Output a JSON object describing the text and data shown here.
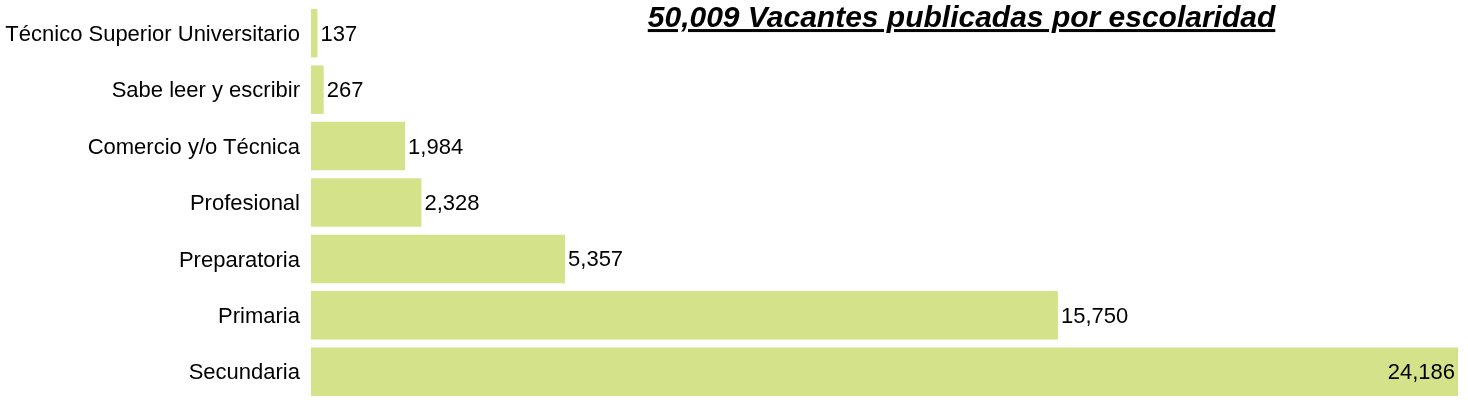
{
  "chart_data": {
    "type": "bar",
    "orientation": "horizontal",
    "title": "50,009 Vacantes publicadas por escolaridad",
    "categories": [
      "Técnico Superior Universitario",
      "Sabe leer y escribir",
      "Comercio y/o Técnica",
      "Profesional",
      "Preparatoria",
      "Primaria",
      "Secundaria"
    ],
    "values": [
      137,
      267,
      1984,
      2328,
      5357,
      15750,
      24186
    ],
    "value_labels": [
      "137",
      "267",
      "1,984",
      "2,328",
      "5,357",
      "15,750",
      "24,186"
    ],
    "color": "#d4e38a"
  }
}
